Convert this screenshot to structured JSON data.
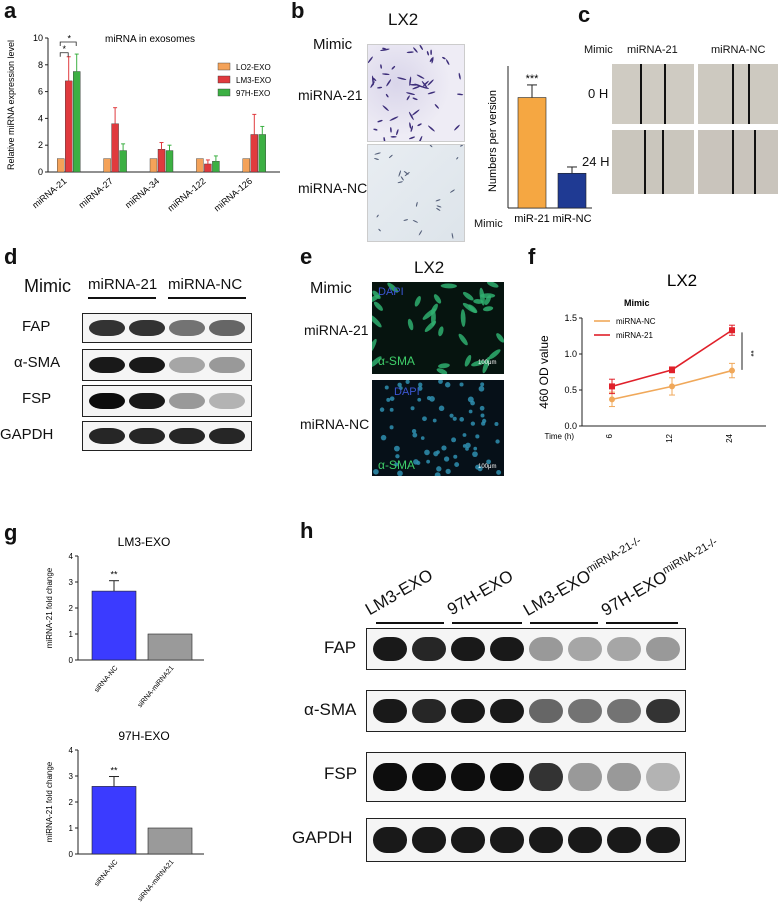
{
  "panels": {
    "a": {
      "label": "a"
    },
    "b": {
      "label": "b",
      "title": "LX2",
      "mimic": "Mimic",
      "row1": "miRNA-21",
      "row2": "miRNA-NC",
      "xmimic": "Mimic"
    },
    "c": {
      "label": "c",
      "mimic": "Mimic",
      "col1": "miRNA-21",
      "col2": "miRNA-NC",
      "row1": "0 H",
      "row2": "24 H"
    },
    "d": {
      "label": "d",
      "mimic": "Mimic",
      "col1": "miRNA-21",
      "col2": "miRNA-NC",
      "rows": [
        "FAP",
        "α-SMA",
        "FSP",
        "GAPDH"
      ]
    },
    "e": {
      "label": "e",
      "title": "LX2",
      "mimic": "Mimic",
      "row1": "miRNA-21",
      "row2": "miRNA-NC",
      "dapi": "DAPI",
      "asma": "α-SMA",
      "scale": "100μm"
    },
    "f": {
      "label": "f"
    },
    "g": {
      "label": "g"
    },
    "h": {
      "label": "h",
      "cols": [
        "LM3-EXO",
        "97H-EXO",
        "LM3-EXO",
        "97H-EXO"
      ],
      "sup": "miRNA-21-/-",
      "rows": [
        "FAP",
        "α-SMA",
        "FSP",
        "GAPDH"
      ]
    }
  },
  "chart_data": [
    {
      "id": "a",
      "type": "bar",
      "title": "miRNA in exosomes",
      "ylabel": "Relative miRNA expression level",
      "xlabel": "",
      "ylim": [
        0,
        10
      ],
      "yticks": [
        0,
        2,
        4,
        6,
        8,
        10
      ],
      "categories": [
        "miRNA-21",
        "miRNA-27",
        "miRNA-34",
        "miRNA-122",
        "miRNA-126"
      ],
      "series": [
        {
          "name": "LO2-EXO",
          "color": "#f4a259",
          "values": [
            1,
            1,
            1,
            1,
            1
          ],
          "errors": [
            0,
            0,
            0,
            0,
            0
          ]
        },
        {
          "name": "LM3-EXO",
          "color": "#e03a3e",
          "values": [
            6.8,
            3.6,
            1.7,
            0.6,
            2.8
          ],
          "errors": [
            1.8,
            1.2,
            0.5,
            0.3,
            1.5
          ]
        },
        {
          "name": "97H-EXO",
          "color": "#3cb043",
          "values": [
            7.5,
            1.6,
            1.6,
            0.8,
            2.8
          ],
          "errors": [
            1.3,
            0.5,
            0.4,
            0.4,
            0.6
          ]
        }
      ],
      "significance": [
        "*",
        "*"
      ],
      "legend": "right"
    },
    {
      "id": "b",
      "type": "bar",
      "ylabel": "Numbers per version",
      "ylim": [
        0,
        45
      ],
      "categories": [
        "miR-21",
        "miR-NC"
      ],
      "values": [
        35,
        11
      ],
      "errors": [
        4,
        2
      ],
      "colors": [
        "#f5a742",
        "#1f3a93"
      ],
      "significance": "***"
    },
    {
      "id": "f",
      "type": "line",
      "title": "LX2",
      "xlabel": "Time (h)",
      "ylabel": "460 OD value",
      "ylim": [
        0,
        1.5
      ],
      "yticks": [
        0.0,
        0.5,
        1.0,
        1.5
      ],
      "xticklabels": [
        "6",
        "12",
        "24"
      ],
      "legend_title": "Mimic",
      "series": [
        {
          "name": "miRNA-NC",
          "color": "#f0a85a",
          "values": [
            0.37,
            0.55,
            0.77
          ],
          "errors": [
            0.1,
            0.12,
            0.1
          ]
        },
        {
          "name": "miRNA-21",
          "color": "#e0202a",
          "values": [
            0.55,
            0.78,
            1.33
          ],
          "errors": [
            0.1,
            0.04,
            0.07
          ]
        }
      ],
      "significance": "**"
    },
    {
      "id": "g1",
      "type": "bar",
      "title": "LM3-EXO",
      "ylabel": "miRNA-21 fold change",
      "ylim": [
        0,
        4
      ],
      "yticks": [
        0,
        1,
        2,
        3,
        4
      ],
      "categories": [
        "siRNA-NC",
        "siRNA-miRNA21"
      ],
      "values": [
        2.65,
        1.0
      ],
      "errors": [
        0.4,
        0
      ],
      "colors": [
        "#3b3bff",
        "#9a9a9a"
      ],
      "significance": "**"
    },
    {
      "id": "g2",
      "type": "bar",
      "title": "97H-EXO",
      "ylabel": "miRNA-21 fold change",
      "ylim": [
        0,
        4
      ],
      "yticks": [
        0,
        1,
        2,
        3,
        4
      ],
      "categories": [
        "siRNA-NC",
        "siRNA-miRNA21"
      ],
      "values": [
        2.6,
        1.0
      ],
      "errors": [
        0.38,
        0
      ],
      "colors": [
        "#3b3bff",
        "#9a9a9a"
      ],
      "significance": "**"
    }
  ]
}
